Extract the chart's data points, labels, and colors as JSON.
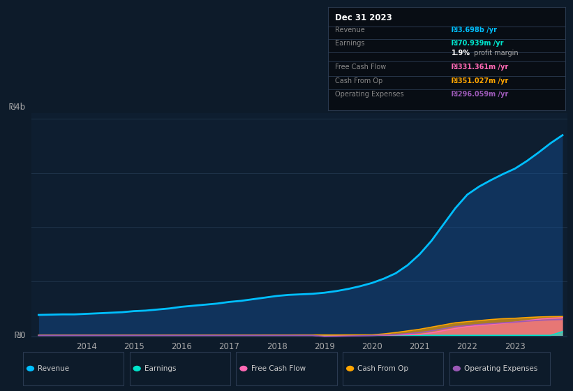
{
  "bg_color": "#0d1b2a",
  "plot_bg_color": "#0e1e30",
  "grid_color": "#1e3248",
  "years": [
    2013.0,
    2013.25,
    2013.5,
    2013.75,
    2014.0,
    2014.25,
    2014.5,
    2014.75,
    2015.0,
    2015.25,
    2015.5,
    2015.75,
    2016.0,
    2016.25,
    2016.5,
    2016.75,
    2017.0,
    2017.25,
    2017.5,
    2017.75,
    2018.0,
    2018.25,
    2018.5,
    2018.75,
    2019.0,
    2019.25,
    2019.5,
    2019.75,
    2020.0,
    2020.25,
    2020.5,
    2020.75,
    2021.0,
    2021.25,
    2021.5,
    2021.75,
    2022.0,
    2022.25,
    2022.5,
    2022.75,
    2023.0,
    2023.25,
    2023.5,
    2023.75,
    2024.0
  ],
  "revenue": [
    0.38,
    0.385,
    0.39,
    0.39,
    0.4,
    0.41,
    0.42,
    0.43,
    0.45,
    0.46,
    0.48,
    0.5,
    0.53,
    0.55,
    0.57,
    0.59,
    0.62,
    0.64,
    0.67,
    0.7,
    0.73,
    0.75,
    0.76,
    0.77,
    0.79,
    0.82,
    0.86,
    0.91,
    0.97,
    1.05,
    1.15,
    1.3,
    1.5,
    1.75,
    2.05,
    2.35,
    2.6,
    2.75,
    2.87,
    2.98,
    3.08,
    3.22,
    3.38,
    3.55,
    3.698
  ],
  "earnings": [
    0.003,
    0.003,
    0.003,
    0.003,
    0.003,
    0.003,
    0.003,
    0.003,
    0.003,
    0.003,
    0.003,
    0.003,
    0.003,
    0.003,
    0.003,
    0.003,
    0.003,
    0.003,
    0.003,
    0.003,
    0.003,
    0.003,
    0.003,
    0.003,
    0.003,
    0.003,
    0.003,
    0.003,
    0.003,
    0.003,
    0.003,
    0.003,
    0.003,
    0.003,
    0.003,
    0.003,
    0.003,
    0.003,
    0.003,
    0.003,
    0.003,
    0.003,
    0.003,
    0.003,
    0.071
  ],
  "free_cash_flow": [
    0.002,
    0.002,
    0.002,
    0.002,
    0.002,
    0.002,
    0.002,
    0.002,
    0.002,
    0.002,
    0.002,
    0.002,
    0.002,
    0.002,
    0.002,
    0.002,
    0.002,
    0.002,
    0.002,
    0.002,
    0.002,
    0.002,
    0.002,
    0.002,
    -0.01,
    -0.005,
    0.001,
    0.002,
    0.002,
    0.005,
    0.01,
    0.015,
    0.02,
    0.05,
    0.09,
    0.13,
    0.165,
    0.185,
    0.205,
    0.225,
    0.245,
    0.275,
    0.3,
    0.318,
    0.331
  ],
  "cash_from_op": [
    0.005,
    0.005,
    0.005,
    0.005,
    0.005,
    0.005,
    0.005,
    0.006,
    0.006,
    0.006,
    0.006,
    0.007,
    0.007,
    0.007,
    0.007,
    0.008,
    0.008,
    0.008,
    0.008,
    0.009,
    0.009,
    0.009,
    0.01,
    0.01,
    0.01,
    0.01,
    0.011,
    0.011,
    0.012,
    0.03,
    0.055,
    0.085,
    0.115,
    0.155,
    0.195,
    0.235,
    0.255,
    0.275,
    0.295,
    0.31,
    0.318,
    0.332,
    0.342,
    0.348,
    0.351
  ],
  "operating_expenses": [
    0.002,
    0.002,
    0.002,
    0.002,
    0.002,
    0.002,
    0.002,
    0.002,
    0.002,
    0.002,
    0.002,
    0.002,
    0.002,
    0.002,
    0.002,
    0.002,
    0.002,
    0.002,
    0.002,
    0.002,
    0.002,
    0.002,
    0.002,
    0.002,
    -0.018,
    -0.015,
    -0.01,
    -0.005,
    0.0,
    0.01,
    0.018,
    0.035,
    0.055,
    0.085,
    0.125,
    0.165,
    0.185,
    0.205,
    0.22,
    0.235,
    0.248,
    0.265,
    0.28,
    0.29,
    0.296
  ],
  "revenue_color": "#00bfff",
  "earnings_color": "#00e5cc",
  "fcf_color": "#ff69b4",
  "cashop_color": "#ffa500",
  "opex_color": "#9b59b6",
  "ylim_min": -0.05,
  "ylim_max": 4.1,
  "y_tick_labels_top": "₪4b",
  "y_tick_label_zero": "₪0",
  "x_ticks": [
    2014,
    2015,
    2016,
    2017,
    2018,
    2019,
    2020,
    2021,
    2022,
    2023
  ],
  "info_box_title": "Dec 31 2023",
  "info_rows": [
    {
      "label": "Revenue",
      "value": "₪3.698b /yr",
      "value_color": "#00bfff",
      "bold_value": true
    },
    {
      "label": "Earnings",
      "value": "₪70.939m /yr",
      "value_color": "#00e5cc",
      "bold_value": true
    },
    {
      "label": "",
      "value": "",
      "value_color": "",
      "bold_value": false,
      "extra_bold": "1.9%",
      "extra_normal": " profit margin"
    },
    {
      "label": "Free Cash Flow",
      "value": "₪331.361m /yr",
      "value_color": "#ff69b4",
      "bold_value": true
    },
    {
      "label": "Cash From Op",
      "value": "₪351.027m /yr",
      "value_color": "#ffa500",
      "bold_value": true
    },
    {
      "label": "Operating Expenses",
      "value": "₪296.059m /yr",
      "value_color": "#9b59b6",
      "bold_value": true
    }
  ],
  "legend": [
    {
      "label": "Revenue",
      "color": "#00bfff"
    },
    {
      "label": "Earnings",
      "color": "#00e5cc"
    },
    {
      "label": "Free Cash Flow",
      "color": "#ff69b4"
    },
    {
      "label": "Cash From Op",
      "color": "#ffa500"
    },
    {
      "label": "Operating Expenses",
      "color": "#9b59b6"
    }
  ]
}
